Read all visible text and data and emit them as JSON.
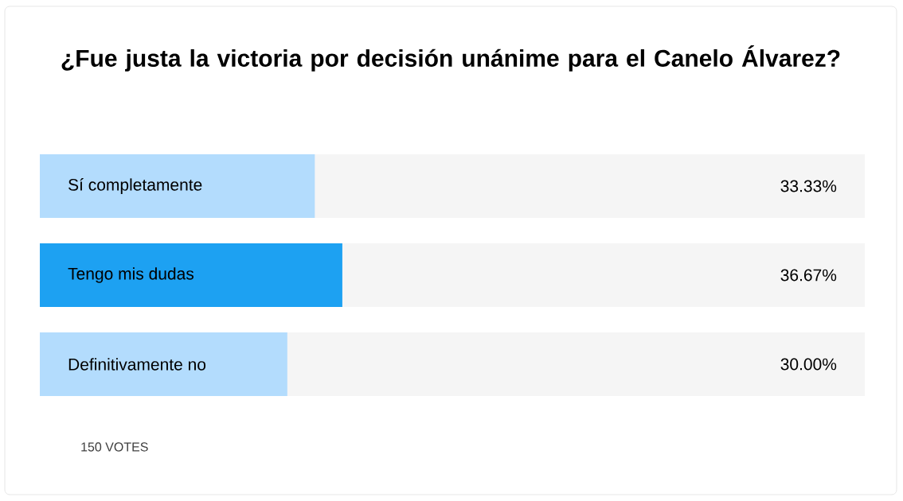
{
  "chart_data": {
    "type": "bar",
    "orientation": "horizontal",
    "title": "¿Fue justa la victoria por decisión unánime para el Canelo Álvarez?",
    "categories": [
      "Sí completamente",
      "Tengo mis dudas",
      "Definitivamente no"
    ],
    "values": [
      33.33,
      36.67,
      30.0
    ],
    "colors": [
      "#b3dcfd",
      "#1da1f2",
      "#b3dcfd"
    ],
    "value_labels": [
      "33.33%",
      "36.67%",
      "30.00%"
    ],
    "xlim": [
      0,
      100
    ],
    "tick_labels": false,
    "annotations": [
      "150 VOTES"
    ]
  }
}
